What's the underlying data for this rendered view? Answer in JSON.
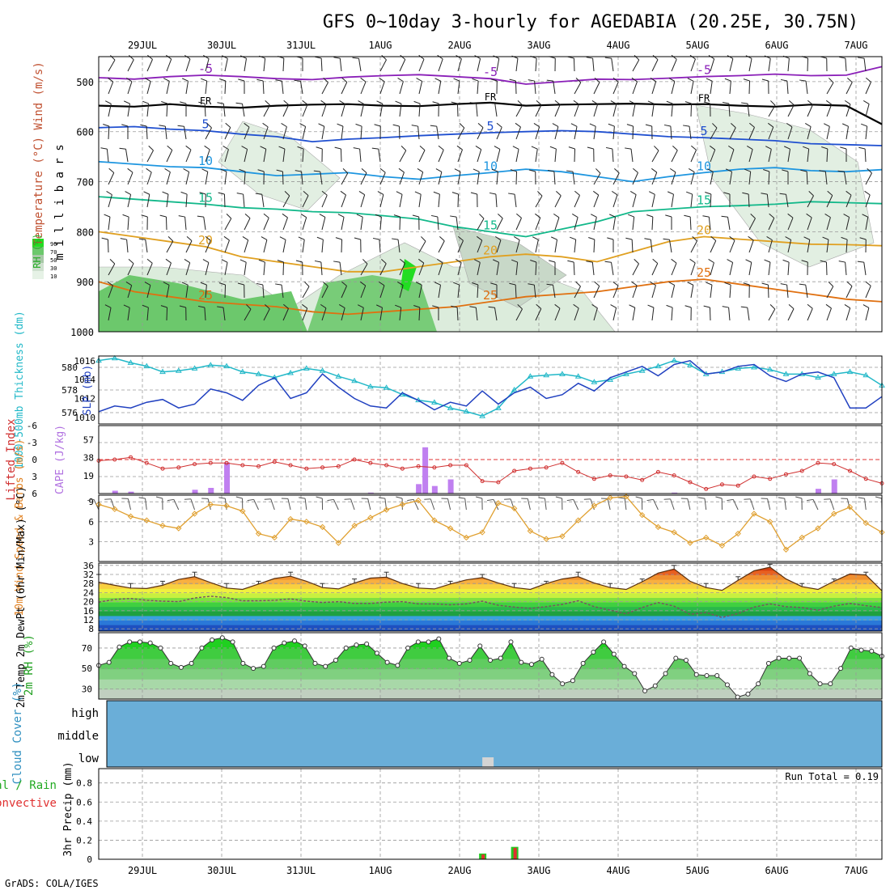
{
  "title": "GFS 0~10day 3-hourly for AGEDABIA (20.25E, 30.75N)",
  "credit": "GrADS: COLA/IGES",
  "date_labels": [
    "29JUL",
    "30JUL",
    "31JUL",
    "1AUG",
    "2AUG",
    "3AUG",
    "4AUG",
    "5AUG",
    "6AUG",
    "7AUG"
  ],
  "chart_data": [
    {
      "type": "heatmap",
      "name": "upper-air",
      "ylabel_parts": [
        "RH (%)",
        "Temperature (°C)",
        "Wind (m/s)",
        "m i l l i b a r s"
      ],
      "y_ticks": [
        500,
        600,
        700,
        800,
        900,
        1000
      ],
      "ylim": [
        1000,
        450
      ],
      "contours": [
        {
          "label": "-5",
          "color": "#8a1fb8",
          "p": [
            492,
            495,
            490,
            487,
            490,
            494,
            496,
            491,
            488,
            486,
            490,
            494,
            505,
            500,
            495,
            496,
            493,
            490,
            488,
            485,
            488,
            487,
            470
          ]
        },
        {
          "label": "FR",
          "color": "#000000",
          "p": [
            548,
            550,
            545,
            550,
            552,
            548,
            546,
            545,
            548,
            549,
            545,
            542,
            548,
            546,
            545,
            544,
            546,
            545,
            548,
            550,
            546,
            548,
            585
          ]
        },
        {
          "label": "5",
          "color": "#1f4fd0",
          "p": [
            592,
            590,
            595,
            598,
            605,
            610,
            620,
            615,
            612,
            608,
            605,
            602,
            600,
            598,
            600,
            605,
            610,
            612,
            615,
            618,
            624,
            626,
            628
          ]
        },
        {
          "label": "10",
          "color": "#1e96e0",
          "p": [
            660,
            665,
            670,
            672,
            680,
            688,
            685,
            682,
            690,
            695,
            688,
            682,
            675,
            680,
            690,
            700,
            690,
            682,
            675,
            672,
            678,
            680,
            676
          ]
        },
        {
          "label": "15",
          "color": "#12b88a",
          "p": [
            730,
            735,
            740,
            745,
            752,
            755,
            760,
            762,
            768,
            775,
            790,
            800,
            810,
            795,
            780,
            760,
            755,
            750,
            748,
            745,
            740,
            742,
            744
          ]
        },
        {
          "label": "20",
          "color": "#e0a020",
          "p": [
            800,
            810,
            820,
            830,
            850,
            860,
            870,
            880,
            880,
            870,
            860,
            850,
            845,
            850,
            860,
            840,
            820,
            810,
            815,
            820,
            825,
            826,
            828
          ]
        },
        {
          "label": "25",
          "color": "#e07010",
          "p": [
            900,
            920,
            930,
            940,
            945,
            950,
            960,
            965,
            960,
            955,
            950,
            940,
            930,
            925,
            920,
            910,
            900,
            895,
            905,
            915,
            925,
            935,
            940
          ]
        }
      ],
      "rh_legend": [
        "10",
        "30",
        "50",
        "70",
        "90"
      ]
    },
    {
      "type": "line",
      "name": "slp-thickness",
      "series": [
        {
          "name": "1000-500mb Thickness (dm)",
          "color": "#22b8c8",
          "axis": "left",
          "yticks": [
            576,
            578,
            580
          ],
          "ylim": [
            575,
            581
          ],
          "values": [
            580.6,
            580.8,
            580.4,
            580.1,
            579.6,
            579.7,
            579.9,
            580.2,
            580.1,
            579.6,
            579.4,
            579.1,
            579.5,
            579.9,
            579.7,
            579.2,
            578.8,
            578.3,
            578.2,
            577.6,
            577.1,
            576.9,
            576.4,
            576.1,
            575.7,
            576.4,
            578.0,
            579.2,
            579.3,
            579.4,
            579.2,
            578.7,
            578.9,
            579.4,
            579.7,
            580.1,
            580.6,
            580.2,
            579.4,
            579.6,
            579.9,
            580.0,
            579.8,
            579.4,
            579.4,
            579.1,
            579.4,
            579.6,
            579.3,
            578.4
          ]
        },
        {
          "name": "SLP (mb)",
          "color": "#2040c0",
          "axis": "right",
          "yticks": [
            1010,
            1012,
            1014,
            1016
          ],
          "ylim": [
            1009.3,
            1016.5
          ],
          "values": [
            1010.6,
            1011.2,
            1011.0,
            1011.6,
            1011.9,
            1011.0,
            1011.4,
            1013.0,
            1012.6,
            1011.8,
            1013.4,
            1014.2,
            1012.0,
            1012.6,
            1014.6,
            1013.2,
            1012.0,
            1011.2,
            1011.0,
            1012.6,
            1011.8,
            1010.8,
            1011.6,
            1011.2,
            1012.8,
            1011.4,
            1012.6,
            1013.2,
            1012.0,
            1012.4,
            1013.6,
            1012.8,
            1014.2,
            1014.8,
            1015.4,
            1014.4,
            1015.6,
            1016.0,
            1014.6,
            1014.8,
            1015.4,
            1015.6,
            1014.4,
            1013.8,
            1014.6,
            1014.8,
            1014.2,
            1011.0,
            1011.0,
            1012.2
          ]
        }
      ]
    },
    {
      "type": "bar",
      "name": "lifted-index-cape",
      "ylabel_left": "Lifted Index",
      "ylabel_right": "CAPE (J/kg)",
      "li_ticks": [
        "-6",
        "-3",
        "0",
        "3",
        "6"
      ],
      "cape_ticks": [
        "57",
        "38",
        "19"
      ],
      "li_values": [
        0.2,
        0.0,
        -0.4,
        0.6,
        1.6,
        1.4,
        0.8,
        0.6,
        0.6,
        1.0,
        1.2,
        0.4,
        1.0,
        1.6,
        1.4,
        1.2,
        0.0,
        0.6,
        1.0,
        1.6,
        1.2,
        1.4,
        1.0,
        1.0,
        3.8,
        4.0,
        2.0,
        1.6,
        1.4,
        0.6,
        2.2,
        3.4,
        2.8,
        3.0,
        3.6,
        2.2,
        2.8,
        4.0,
        5.2,
        4.4,
        4.6,
        3.0,
        3.4,
        2.6,
        2.0,
        0.6,
        0.8,
        2.0,
        3.4,
        4.2
      ],
      "cape_values": [
        0,
        3,
        2,
        0,
        0,
        0,
        4,
        6,
        33,
        0,
        0,
        0,
        0,
        0,
        0,
        0,
        0,
        1,
        0,
        0,
        10,
        8,
        15,
        0,
        0,
        0,
        0,
        0,
        0,
        0,
        0,
        0,
        0,
        0,
        0,
        0,
        1,
        0,
        0,
        0,
        0,
        0,
        0,
        0,
        0,
        5,
        15,
        0,
        0,
        0
      ],
      "cape_extra_at": {
        "index": 20,
        "value": 49
      }
    },
    {
      "type": "line",
      "name": "10m-wind",
      "ylabel": "10m Wind Speed & Barbs (m/s)",
      "yticks": [
        3,
        6,
        9
      ],
      "ylim": [
        0,
        10
      ],
      "values": [
        8.6,
        7.9,
        6.8,
        6.2,
        5.4,
        5.0,
        7.2,
        8.6,
        8.4,
        7.6,
        4.2,
        3.6,
        6.4,
        6.0,
        5.2,
        2.8,
        5.4,
        6.6,
        7.8,
        8.6,
        9.2,
        6.2,
        5.0,
        3.6,
        4.4,
        8.8,
        8.0,
        4.6,
        3.4,
        3.8,
        6.2,
        8.4,
        9.6,
        9.8,
        7.0,
        5.2,
        4.4,
        2.8,
        3.6,
        2.4,
        4.2,
        7.2,
        6.0,
        1.8,
        3.6,
        5.0,
        7.2,
        8.2,
        5.8,
        4.4
      ]
    },
    {
      "type": "area",
      "name": "2m-temperature",
      "ylabel": "2m Temp 2m DewPt (6hr Min/Max) (°C)",
      "yticks": [
        8,
        12,
        16,
        20,
        24,
        28,
        32,
        36
      ],
      "ylim": [
        7,
        37
      ],
      "temp": [
        28.6,
        27.2,
        26.0,
        25.8,
        27.2,
        29.8,
        31.0,
        28.4,
        26.0,
        25.4,
        27.8,
        30.2,
        31.2,
        29.0,
        26.2,
        25.6,
        28.2,
        30.4,
        30.8,
        28.0,
        26.0,
        25.6,
        27.8,
        29.6,
        30.6,
        28.2,
        26.2,
        25.4,
        28.0,
        30.0,
        31.0,
        28.2,
        26.2,
        25.4,
        28.8,
        32.6,
        34.4,
        29.0,
        26.2,
        25.0,
        29.4,
        33.6,
        35.2,
        30.0,
        26.6,
        25.4,
        29.0,
        32.2,
        31.8,
        24.8
      ],
      "dewpt": [
        19.8,
        21.0,
        21.4,
        20.6,
        20.2,
        20.0,
        21.6,
        22.4,
        21.8,
        20.4,
        20.4,
        20.6,
        21.2,
        20.2,
        19.6,
        20.0,
        19.2,
        19.2,
        19.8,
        20.0,
        19.0,
        19.0,
        18.6,
        19.0,
        20.2,
        18.4,
        17.6,
        17.0,
        17.8,
        18.8,
        20.4,
        17.8,
        16.2,
        14.6,
        17.4,
        19.6,
        18.0,
        14.4,
        15.2,
        13.0,
        14.8,
        17.6,
        19.0,
        17.8,
        17.4,
        16.2,
        18.0,
        19.2,
        18.2,
        17.4
      ],
      "temp_max": [
        32.0,
        29.0,
        28.0,
        27.0,
        29.0,
        31.0,
        33.0,
        30.0,
        28.0,
        27.0,
        29.0,
        32.0,
        33.0,
        31.0,
        28.0,
        27.0,
        30.0,
        32.0,
        33.0,
        30.0,
        28.0,
        27.0,
        29.0,
        31.0,
        32.0,
        30.0,
        28.0,
        27.0,
        29.0,
        32.0,
        33.0,
        30.0,
        28.0,
        27.0,
        30.0,
        34.0,
        36.0,
        31.0,
        28.0,
        27.0,
        31.0,
        35.0,
        36.5,
        32.0,
        28.0,
        27.0,
        30.0,
        33.0,
        33.0,
        26.0
      ]
    },
    {
      "type": "area",
      "name": "2m-rh",
      "ylabel": "2m RH (%)",
      "yticks": [
        30,
        50,
        70
      ],
      "ylim": [
        20,
        85
      ],
      "values": [
        53,
        56,
        71,
        76,
        76,
        75,
        70,
        55,
        51,
        55,
        70,
        78,
        80,
        76,
        55,
        50,
        52,
        70,
        75,
        77,
        72,
        55,
        52,
        58,
        70,
        73,
        74,
        65,
        56,
        53,
        70,
        76,
        76,
        79,
        60,
        55,
        58,
        72,
        58,
        60,
        76,
        56,
        54,
        59,
        44,
        35,
        38,
        55,
        66,
        76,
        64,
        52,
        45,
        28,
        33,
        45,
        60,
        58,
        44,
        43,
        43,
        34,
        22,
        25,
        35,
        55,
        60,
        60,
        60,
        45,
        35,
        35,
        50,
        70,
        68,
        67,
        62
      ]
    },
    {
      "type": "table",
      "name": "cloud-cover",
      "ylabel": "Cloud Cover (%)",
      "levels": [
        "high",
        "middle",
        "low"
      ],
      "low_gap_index": 24
    },
    {
      "type": "bar",
      "name": "3hr-precip",
      "ylabel_left": "Total / Rain",
      "ylabel_right": "Convective",
      "ylabel": "3hr Precip (mm)",
      "yticks": [
        "0",
        "0.2",
        "0.4",
        "0.6",
        "0.8"
      ],
      "ylim": [
        0,
        0.95
      ],
      "run_total_label": "Run Total = 0.19",
      "bars": [
        {
          "index": 24,
          "total": 0.06,
          "conv": 0.05
        },
        {
          "index": 26,
          "total": 0.13,
          "conv": 0.12
        }
      ]
    }
  ]
}
